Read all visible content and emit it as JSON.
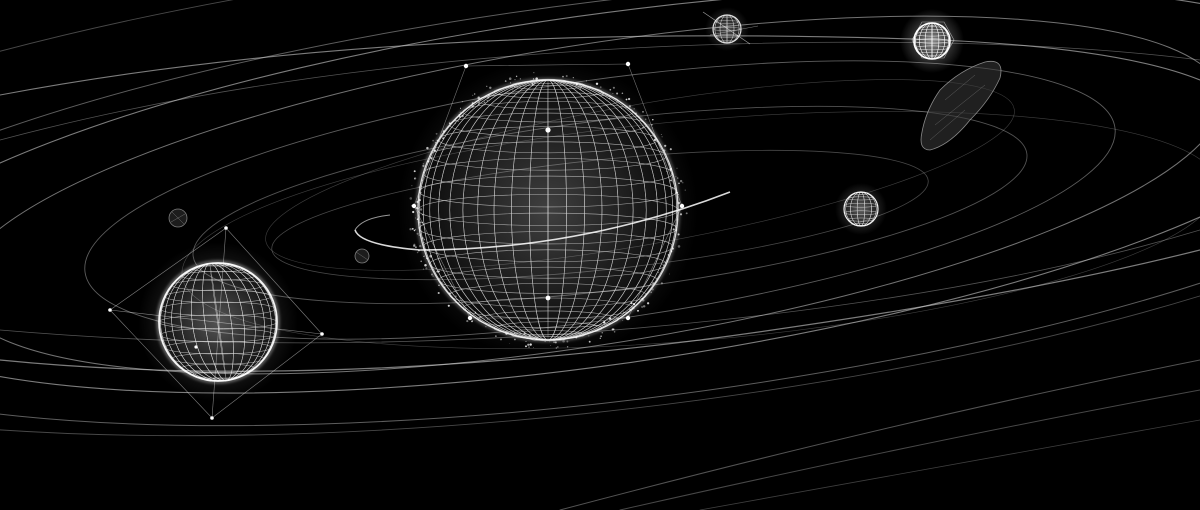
{
  "scene": {
    "background": "#000000",
    "line_color": "#d8d8d8",
    "glow_color": "#ffffff",
    "bodies": [
      {
        "kind": "central-sphere",
        "icon": "wireframe-sphere"
      },
      {
        "kind": "planet",
        "icon": "wireframe-sphere"
      },
      {
        "kind": "planet",
        "icon": "wireframe-sphere"
      },
      {
        "kind": "planet",
        "icon": "wireframe-sphere"
      },
      {
        "kind": "planet",
        "icon": "wireframe-sphere"
      },
      {
        "kind": "asteroid",
        "icon": "asteroid-shape"
      },
      {
        "kind": "moon",
        "icon": "small-rock"
      },
      {
        "kind": "moon",
        "icon": "small-rock"
      }
    ]
  }
}
